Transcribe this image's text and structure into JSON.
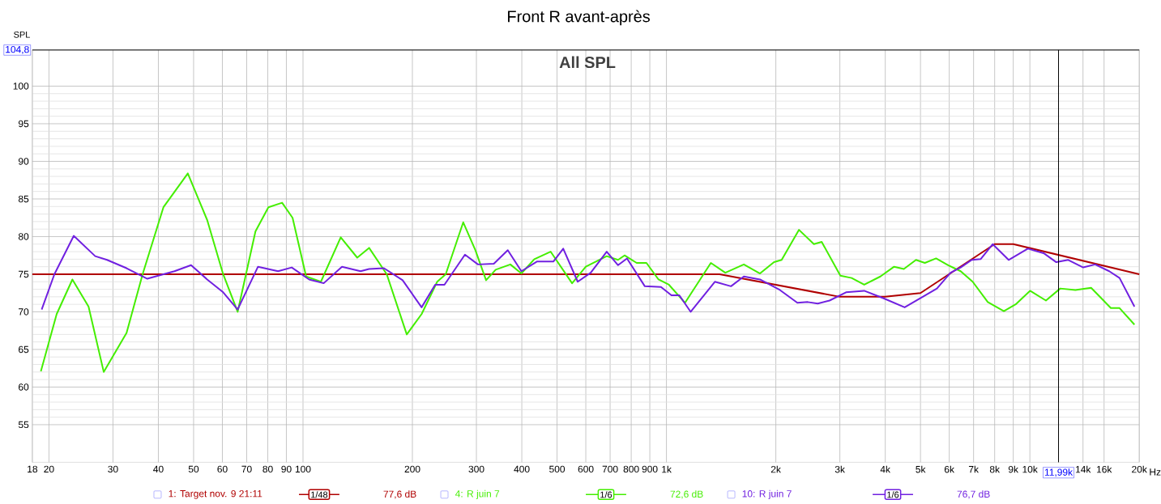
{
  "chart_data": {
    "type": "line",
    "title": "Front R avant-après",
    "subtitle": "All SPL",
    "ylabel": "SPL",
    "log": "x",
    "xlim": [
      18,
      20000
    ],
    "ylim": [
      50,
      104.8
    ],
    "xticks": [
      18,
      20,
      30,
      40,
      50,
      60,
      70,
      80,
      90,
      100,
      200,
      300,
      400,
      500,
      600,
      700,
      800,
      900,
      {
        "value": 1000,
        "label": "1k"
      },
      {
        "value": 2000,
        "label": "2k"
      },
      {
        "value": 3000,
        "label": "3k"
      },
      {
        "value": 4000,
        "label": "4k"
      },
      {
        "value": 5000,
        "label": "5k"
      },
      {
        "value": 6000,
        "label": "6k"
      },
      {
        "value": 7000,
        "label": "7k"
      },
      {
        "value": 8000,
        "label": "8k"
      },
      {
        "value": 9000,
        "label": "9k"
      },
      {
        "value": 10000,
        "label": "10k"
      },
      {
        "value": 14000,
        "label": "14k"
      },
      {
        "value": 16000,
        "label": "16k"
      },
      {
        "value": 20000,
        "label": "20k"
      }
    ],
    "xlabel": "Hz",
    "yticks": [
      55,
      60,
      65,
      70,
      75,
      80,
      85,
      90,
      95,
      100
    ],
    "grid": true,
    "legend": "bottom",
    "marker": "none",
    "line_style": "solid",
    "ref_lines": [
      {
        "axis": "y",
        "value": 104.8,
        "label": "104,8",
        "color": "#000000"
      },
      {
        "axis": "x",
        "value": 11990,
        "label": "11,99k",
        "color": "#000000"
      }
    ],
    "annotations": [
      "1/48",
      "77,6 dB",
      "1/6",
      "72,6 dB",
      "1/6",
      "76,7 dB"
    ],
    "series": [
      {
        "name": "1: Target nov. 9 21:11",
        "color": "#b00000",
        "x": [
          18,
          1400,
          3000,
          4000,
          5000,
          8000,
          9000,
          20000
        ],
        "values": [
          75,
          75,
          72,
          72,
          72.5,
          79,
          79,
          75
        ]
      },
      {
        "name": "4: R juin 7",
        "color": "#44ee00",
        "x": [
          19,
          21,
          23.2,
          25.7,
          28.3,
          32.7,
          36.2,
          41.3,
          48.2,
          54.5,
          60.3,
          66.1,
          74,
          80.3,
          87.6,
          93.6,
          102,
          112,
          127,
          141,
          152,
          170,
          193,
          212,
          234,
          247,
          276,
          298,
          319,
          339,
          372,
          399,
          433,
          480,
          550,
          600,
          685,
          736,
          767,
          828,
          881,
          951,
          1016,
          1125,
          1325,
          1452,
          1633,
          1809,
          1977,
          2075,
          2316,
          2545,
          2674,
          3010,
          3233,
          3501,
          3879,
          4231,
          4500,
          4860,
          5140,
          5520,
          5960,
          6450,
          6960,
          7660,
          8480,
          9140,
          10010,
          11070,
          12120,
          13340,
          14740,
          16700,
          17650,
          19400
        ],
        "values": [
          62.1,
          69.7,
          74.3,
          70.7,
          62,
          67.2,
          75,
          83.9,
          88.4,
          82.2,
          75,
          70,
          80.7,
          83.9,
          84.5,
          82.5,
          74.7,
          74,
          79.9,
          77.2,
          78.5,
          75,
          67,
          69.7,
          74,
          75,
          81.9,
          78.2,
          74.2,
          75.6,
          76.3,
          75.1,
          77,
          78,
          73.8,
          76,
          77.4,
          76.9,
          77.5,
          76.5,
          76.5,
          74.3,
          73.6,
          71.2,
          76.5,
          75.2,
          76.3,
          75.1,
          76.6,
          76.9,
          80.9,
          79,
          79.3,
          74.8,
          74.5,
          73.6,
          74.7,
          76,
          75.7,
          76.9,
          76.5,
          77.1,
          76.2,
          75.4,
          74,
          71.3,
          70.1,
          71,
          72.8,
          71.5,
          73.1,
          72.9,
          73.2,
          70.5,
          70.5,
          68.3
        ]
      },
      {
        "name": "10: R juin 7",
        "color": "#7020e0",
        "x": [
          19.1,
          20.7,
          23.4,
          26.8,
          28.9,
          32.7,
          37.3,
          44.3,
          49.2,
          54.5,
          60.3,
          66.1,
          75.2,
          85.4,
          93.1,
          104,
          114,
          128,
          144,
          152,
          167,
          188,
          212,
          231,
          245,
          279,
          303,
          335,
          366,
          399,
          441,
          489,
          520,
          570,
          619,
          685,
          736,
          779,
          872,
          966,
          1032,
          1085,
          1166,
          1359,
          1505,
          1633,
          1809,
          2052,
          2292,
          2448,
          2608,
          2811,
          3120,
          3501,
          3959,
          4523,
          5117,
          5550,
          6050,
          6450,
          6920,
          7320,
          7900,
          8740,
          9870,
          10910,
          11820,
          12750,
          14020,
          15120,
          16530,
          17650,
          19400
        ],
        "values": [
          70.3,
          75,
          80.1,
          77.4,
          76.9,
          75.8,
          74.4,
          75.4,
          76.2,
          74.3,
          72.6,
          70.3,
          76,
          75.4,
          75.9,
          74.3,
          73.8,
          76,
          75.4,
          75.7,
          75.8,
          74.2,
          70.6,
          73.6,
          73.6,
          77.6,
          76.3,
          76.4,
          78.2,
          75.4,
          76.7,
          76.7,
          78.4,
          74,
          75.2,
          78,
          76.2,
          77.1,
          73.4,
          73.3,
          72.2,
          72.2,
          70,
          74,
          73.4,
          74.7,
          74.3,
          72.9,
          71.2,
          71.3,
          71.1,
          71.5,
          72.6,
          72.8,
          71.8,
          70.6,
          72.1,
          73.1,
          75.2,
          75.9,
          76.9,
          77,
          79,
          76.9,
          78.4,
          77.8,
          76.6,
          76.9,
          75.9,
          76.3,
          75.4,
          74.5,
          70.7
        ]
      }
    ]
  }
}
